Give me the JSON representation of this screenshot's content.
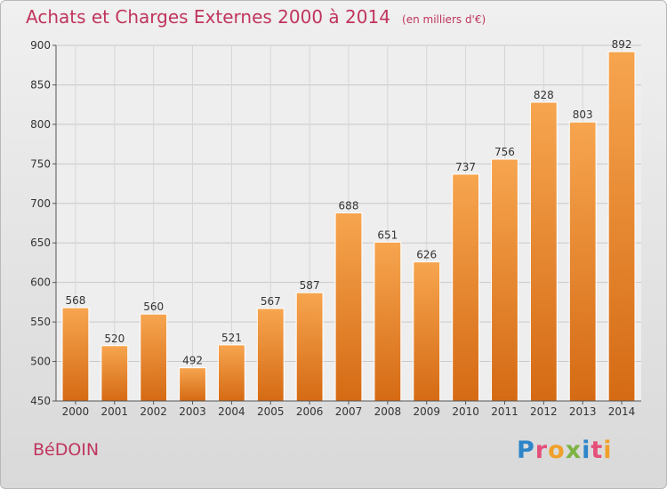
{
  "header": {
    "title": "Achats et Charges Externes 2000 à 2014",
    "subtitle": "(en milliers d'€)"
  },
  "footer": {
    "commune": "BéDOIN",
    "logo_text": "Proxiti",
    "logo_colors": [
      "#2e86c9",
      "#e5507a",
      "#f0a02a",
      "#7cb342",
      "#2e86c9",
      "#e5507a",
      "#f0a02a"
    ]
  },
  "chart_data": {
    "type": "bar",
    "categories": [
      "2000",
      "2001",
      "2002",
      "2003",
      "2004",
      "2005",
      "2006",
      "2007",
      "2008",
      "2009",
      "2010",
      "2011",
      "2012",
      "2013",
      "2014"
    ],
    "values": [
      568,
      520,
      560,
      492,
      521,
      567,
      587,
      688,
      651,
      626,
      737,
      756,
      828,
      803,
      892
    ],
    "ylim": [
      450,
      900
    ],
    "yticks": [
      450,
      500,
      550,
      600,
      650,
      700,
      750,
      800,
      850,
      900
    ],
    "grid": true,
    "bar_color_top": "#f7a54f",
    "bar_color_bottom": "#d56a14"
  }
}
